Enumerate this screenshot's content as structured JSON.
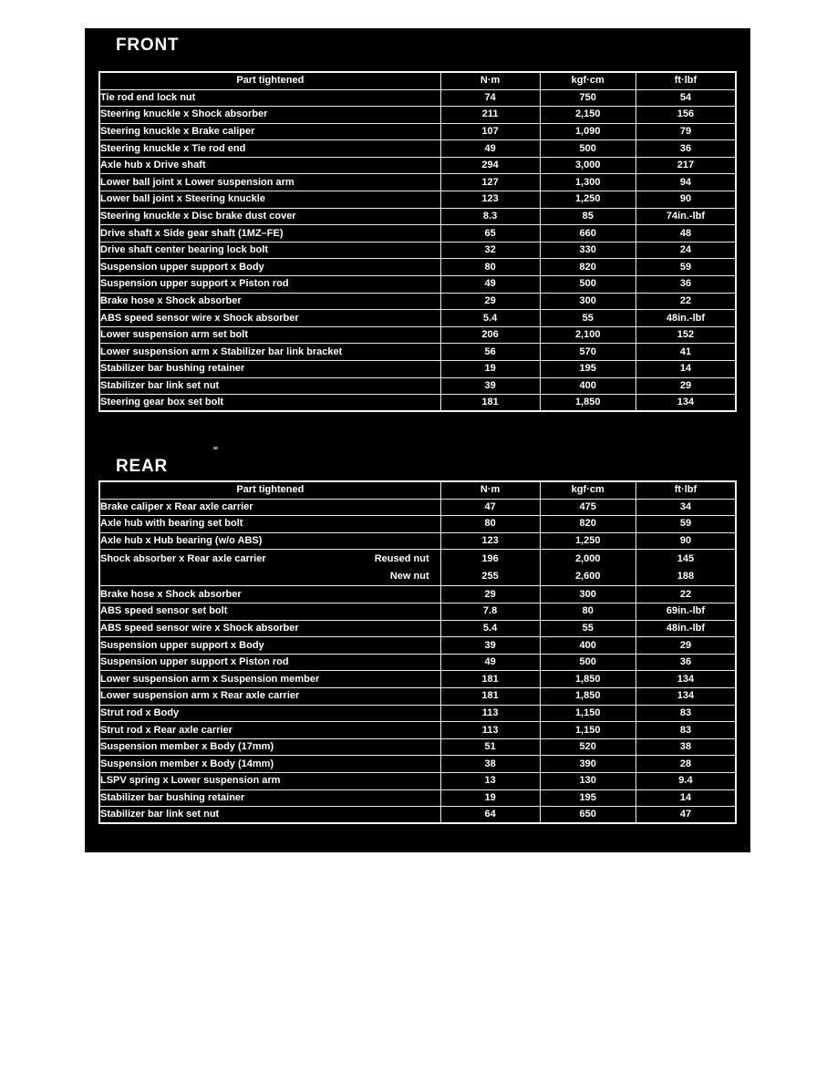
{
  "colors": {
    "page_bg": "#ffffff",
    "panel_bg": "#000000",
    "text": "#ffffff",
    "table_border": "#e9e9e9"
  },
  "sections": [
    {
      "title": "FRONT",
      "columns": [
        "Part tightened",
        "N·m",
        "kgf·cm",
        "ft·lbf"
      ],
      "rows": [
        {
          "part": "Tie rod end lock nut",
          "nm": "74",
          "kgfcm": "750",
          "ftlbf": "54"
        },
        {
          "part": "Steering knuckle x Shock absorber",
          "nm": "211",
          "kgfcm": "2,150",
          "ftlbf": "156"
        },
        {
          "part": "Steering knuckle x Brake caliper",
          "nm": "107",
          "kgfcm": "1,090",
          "ftlbf": "79"
        },
        {
          "part": "Steering knuckle x Tie rod end",
          "nm": "49",
          "kgfcm": "500",
          "ftlbf": "36"
        },
        {
          "part": "Axle hub x Drive shaft",
          "nm": "294",
          "kgfcm": "3,000",
          "ftlbf": "217"
        },
        {
          "part": "Lower ball joint x Lower suspension arm",
          "nm": "127",
          "kgfcm": "1,300",
          "ftlbf": "94"
        },
        {
          "part": "Lower ball joint x Steering knuckle",
          "nm": "123",
          "kgfcm": "1,250",
          "ftlbf": "90"
        },
        {
          "part": "Steering knuckle x Disc brake dust cover",
          "nm": "8.3",
          "kgfcm": "85",
          "ftlbf": "74in.-lbf"
        },
        {
          "part": "Drive shaft x Side gear shaft (1MZ–FE)",
          "nm": "65",
          "kgfcm": "660",
          "ftlbf": "48"
        },
        {
          "part": "Drive shaft center bearing lock bolt",
          "nm": "32",
          "kgfcm": "330",
          "ftlbf": "24"
        },
        {
          "part": "Suspension upper support x Body",
          "nm": "80",
          "kgfcm": "820",
          "ftlbf": "59"
        },
        {
          "part": "Suspension upper support x Piston rod",
          "nm": "49",
          "kgfcm": "500",
          "ftlbf": "36"
        },
        {
          "part": "Brake hose x Shock absorber",
          "nm": "29",
          "kgfcm": "300",
          "ftlbf": "22"
        },
        {
          "part": "ABS speed sensor wire x Shock absorber",
          "nm": "5.4",
          "kgfcm": "55",
          "ftlbf": "48in.-lbf"
        },
        {
          "part": "Lower suspension arm set bolt",
          "nm": "206",
          "kgfcm": "2,100",
          "ftlbf": "152"
        },
        {
          "part": "Lower suspension arm x Stabilizer bar link bracket",
          "nm": "56",
          "kgfcm": "570",
          "ftlbf": "41"
        },
        {
          "part": "Stabilizer bar bushing retainer",
          "nm": "19",
          "kgfcm": "195",
          "ftlbf": "14"
        },
        {
          "part": "Stabilizer bar link set nut",
          "nm": "39",
          "kgfcm": "400",
          "ftlbf": "29"
        },
        {
          "part": "Steering gear box set bolt",
          "nm": "181",
          "kgfcm": "1,850",
          "ftlbf": "134"
        }
      ]
    },
    {
      "title": "REAR",
      "columns": [
        "Part tightened",
        "N·m",
        "kgf·cm",
        "ft·lbf"
      ],
      "rows": [
        {
          "part": "Brake caliper x Rear axle carrier",
          "nm": "47",
          "kgfcm": "475",
          "ftlbf": "34"
        },
        {
          "part": "Axle hub with bearing set bolt",
          "nm": "80",
          "kgfcm": "820",
          "ftlbf": "59"
        },
        {
          "part": "Axle hub x Hub bearing (w/o ABS)",
          "nm": "123",
          "kgfcm": "1,250",
          "ftlbf": "90"
        },
        {
          "part": "Shock absorber x Rear axle carrier",
          "variants": [
            {
              "label": "Reused nut",
              "nm": "196",
              "kgfcm": "2,000",
              "ftlbf": "145"
            },
            {
              "label": "New nut",
              "nm": "255",
              "kgfcm": "2,600",
              "ftlbf": "188"
            }
          ]
        },
        {
          "part": "Brake hose x Shock absorber",
          "nm": "29",
          "kgfcm": "300",
          "ftlbf": "22"
        },
        {
          "part": "ABS speed sensor set bolt",
          "nm": "7.8",
          "kgfcm": "80",
          "ftlbf": "69in.-lbf"
        },
        {
          "part": "ABS speed sensor wire x Shock absorber",
          "nm": "5.4",
          "kgfcm": "55",
          "ftlbf": "48in.-lbf"
        },
        {
          "part": "Suspension upper support x Body",
          "nm": "39",
          "kgfcm": "400",
          "ftlbf": "29"
        },
        {
          "part": "Suspension upper support x Piston rod",
          "nm": "49",
          "kgfcm": "500",
          "ftlbf": "36"
        },
        {
          "part": "Lower suspension arm x Suspension member",
          "nm": "181",
          "kgfcm": "1,850",
          "ftlbf": "134"
        },
        {
          "part": "Lower suspension arm x Rear axle carrier",
          "nm": "181",
          "kgfcm": "1,850",
          "ftlbf": "134"
        },
        {
          "part": "Strut rod x Body",
          "nm": "113",
          "kgfcm": "1,150",
          "ftlbf": "83"
        },
        {
          "part": "Strut rod x Rear axle carrier",
          "nm": "113",
          "kgfcm": "1,150",
          "ftlbf": "83"
        },
        {
          "part": "Suspension member x Body (17mm)",
          "nm": "51",
          "kgfcm": "520",
          "ftlbf": "38"
        },
        {
          "part": "Suspension member x Body (14mm)",
          "nm": "38",
          "kgfcm": "390",
          "ftlbf": "28"
        },
        {
          "part": "LSPV spring x Lower suspension arm",
          "nm": "13",
          "kgfcm": "130",
          "ftlbf": "9.4"
        },
        {
          "part": "Stabilizer bar bushing retainer",
          "nm": "19",
          "kgfcm": "195",
          "ftlbf": "14"
        },
        {
          "part": "Stabilizer bar link set nut",
          "nm": "64",
          "kgfcm": "650",
          "ftlbf": "47"
        }
      ]
    }
  ]
}
